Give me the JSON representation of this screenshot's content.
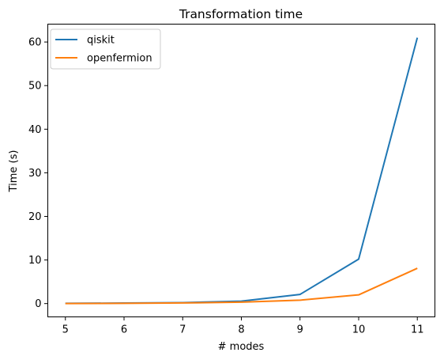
{
  "chart_data": {
    "type": "line",
    "title": "Transformation time",
    "xlabel": "# modes",
    "ylabel": "Time (s)",
    "x": [
      5,
      6,
      7,
      8,
      9,
      10,
      11
    ],
    "xticks": [
      "5",
      "6",
      "7",
      "8",
      "9",
      "10",
      "11"
    ],
    "yticks": [
      "0",
      "10",
      "20",
      "30",
      "40",
      "50",
      "60"
    ],
    "xlim": [
      4.7,
      11.3
    ],
    "ylim": [
      -3.05,
      64.1
    ],
    "grid": false,
    "legend_position": "top-left",
    "series": [
      {
        "name": "qiskit",
        "color": "#1f77b4",
        "values": [
          0.05,
          0.12,
          0.22,
          0.55,
          2.1,
          10.2,
          61.0
        ]
      },
      {
        "name": "openfermion",
        "color": "#ff7f0e",
        "values": [
          0.02,
          0.06,
          0.14,
          0.32,
          0.78,
          2.0,
          8.1
        ]
      }
    ]
  }
}
